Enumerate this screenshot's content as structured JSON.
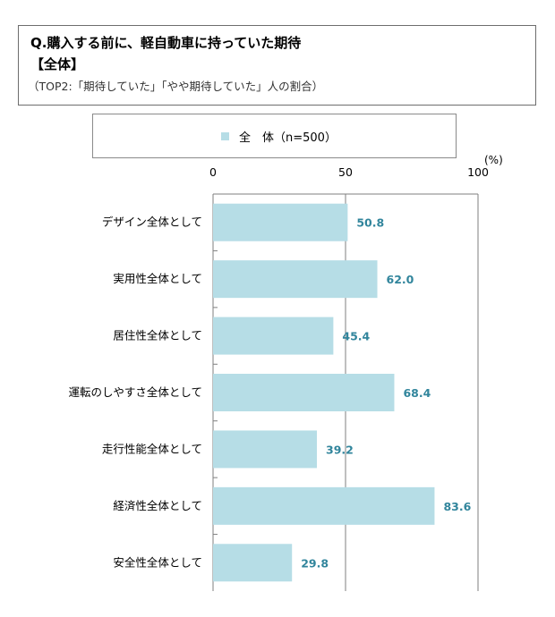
{
  "header": {
    "question": "Q.購入する前に、軽自動車に持っていた期待",
    "segment": "【全体】",
    "note": "（TOP2:「期待していた」「やや期待していた」人の割合）"
  },
  "legend": {
    "label": "全　体（n=500）",
    "color": "#b6dde6"
  },
  "unit": "(%)",
  "colors": {
    "bar": "#b6dde6",
    "value_label": "#31859c",
    "axis": "#7f7f7f"
  },
  "chart_data": {
    "type": "bar",
    "orientation": "horizontal",
    "categories": [
      "デザイン全体として",
      "実用性全体として",
      "居住性全体として",
      "運転のしやすさ全体として",
      "走行性能全体として",
      "経済性全体として",
      "安全性全体として"
    ],
    "series": [
      {
        "name": "全　体（n=500）",
        "values": [
          50.8,
          62.0,
          45.4,
          68.4,
          39.2,
          83.6,
          29.8
        ]
      }
    ],
    "value_labels": [
      "50.8",
      "62.0",
      "45.4",
      "68.4",
      "39.2",
      "83.6",
      "29.8"
    ],
    "xlim": [
      0,
      100
    ],
    "xticks": [
      0,
      50,
      100
    ],
    "xtick_labels": [
      "0",
      "50",
      "100"
    ],
    "grid": true,
    "legend_position": "top"
  }
}
